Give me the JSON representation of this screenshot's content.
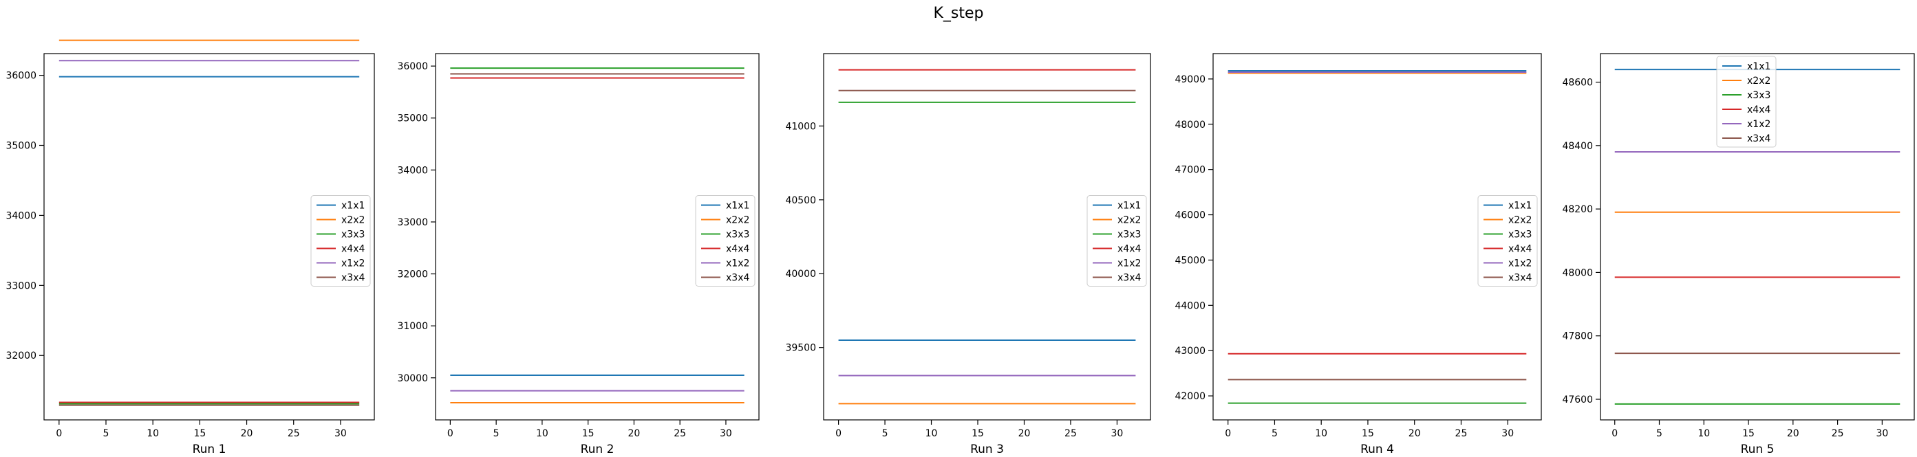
{
  "figure": {
    "title": "K_step"
  },
  "chart_data": [
    {
      "type": "line",
      "title": "",
      "xlabel": "Run 1",
      "ylabel": "",
      "xlim": [
        -1.6,
        33.6
      ],
      "ylim": [
        31080,
        36310
      ],
      "xticks": [
        0,
        5,
        10,
        15,
        20,
        25,
        30
      ],
      "yticks": [
        32000,
        33000,
        34000,
        35000,
        36000
      ],
      "x": [
        0,
        32
      ],
      "legend_position": "center right",
      "series": [
        {
          "name": "x1x1",
          "color": "#1f77b4",
          "values": [
            35980,
            35980
          ]
        },
        {
          "name": "x2x2",
          "color": "#ff7f0e",
          "values": [
            36500,
            36500
          ]
        },
        {
          "name": "x3x3",
          "color": "#2ca02c",
          "values": [
            31310,
            31310
          ]
        },
        {
          "name": "x4x4",
          "color": "#d62728",
          "values": [
            31330,
            31330
          ]
        },
        {
          "name": "x1x2",
          "color": "#9467bd",
          "values": [
            36210,
            36210
          ]
        },
        {
          "name": "x3x4",
          "color": "#8c564b",
          "values": [
            31290,
            31290
          ]
        }
      ]
    },
    {
      "type": "line",
      "title": "",
      "xlabel": "Run 2",
      "ylabel": "",
      "xlim": [
        -1.6,
        33.6
      ],
      "ylim": [
        29190,
        36240
      ],
      "xticks": [
        0,
        5,
        10,
        15,
        20,
        25,
        30
      ],
      "yticks": [
        30000,
        31000,
        32000,
        33000,
        34000,
        35000,
        36000
      ],
      "x": [
        0,
        32
      ],
      "legend_position": "center right",
      "series": [
        {
          "name": "x1x1",
          "color": "#1f77b4",
          "values": [
            30050,
            30050
          ]
        },
        {
          "name": "x2x2",
          "color": "#ff7f0e",
          "values": [
            29520,
            29520
          ]
        },
        {
          "name": "x3x3",
          "color": "#2ca02c",
          "values": [
            35960,
            35960
          ]
        },
        {
          "name": "x4x4",
          "color": "#d62728",
          "values": [
            35770,
            35770
          ]
        },
        {
          "name": "x1x2",
          "color": "#9467bd",
          "values": [
            29750,
            29750
          ]
        },
        {
          "name": "x3x4",
          "color": "#8c564b",
          "values": [
            35850,
            35850
          ]
        }
      ]
    },
    {
      "type": "line",
      "title": "",
      "xlabel": "Run 3",
      "ylabel": "",
      "xlim": [
        -1.6,
        33.6
      ],
      "ylim": [
        39010,
        41490
      ],
      "xticks": [
        0,
        5,
        10,
        15,
        20,
        25,
        30
      ],
      "yticks": [
        39500,
        40000,
        40500,
        41000
      ],
      "x": [
        0,
        32
      ],
      "legend_position": "center right",
      "series": [
        {
          "name": "x1x1",
          "color": "#1f77b4",
          "values": [
            39550,
            39550
          ]
        },
        {
          "name": "x2x2",
          "color": "#ff7f0e",
          "values": [
            39120,
            39120
          ]
        },
        {
          "name": "x3x3",
          "color": "#2ca02c",
          "values": [
            41160,
            41160
          ]
        },
        {
          "name": "x4x4",
          "color": "#d62728",
          "values": [
            41380,
            41380
          ]
        },
        {
          "name": "x1x2",
          "color": "#9467bd",
          "values": [
            39310,
            39310
          ]
        },
        {
          "name": "x3x4",
          "color": "#8c564b",
          "values": [
            41240,
            41240
          ]
        }
      ]
    },
    {
      "type": "line",
      "title": "",
      "xlabel": "Run 4",
      "ylabel": "",
      "xlim": [
        -1.6,
        33.6
      ],
      "ylim": [
        41470,
        49560
      ],
      "xticks": [
        0,
        5,
        10,
        15,
        20,
        25,
        30
      ],
      "yticks": [
        42000,
        43000,
        44000,
        45000,
        46000,
        47000,
        48000,
        49000
      ],
      "x": [
        0,
        32
      ],
      "legend_position": "center right",
      "series": [
        {
          "name": "x1x1",
          "color": "#1f77b4",
          "values": [
            49180,
            49180
          ]
        },
        {
          "name": "x2x2",
          "color": "#ff7f0e",
          "values": [
            49130,
            49130
          ]
        },
        {
          "name": "x3x3",
          "color": "#2ca02c",
          "values": [
            41840,
            41840
          ]
        },
        {
          "name": "x4x4",
          "color": "#d62728",
          "values": [
            42930,
            42930
          ]
        },
        {
          "name": "x1x2",
          "color": "#9467bd",
          "values": [
            49150,
            49150
          ]
        },
        {
          "name": "x3x4",
          "color": "#8c564b",
          "values": [
            42360,
            42360
          ]
        }
      ]
    },
    {
      "type": "line",
      "title": "",
      "xlabel": "Run 5",
      "ylabel": "",
      "xlim": [
        -1.6,
        33.6
      ],
      "ylim": [
        47535,
        48690
      ],
      "xticks": [
        0,
        5,
        10,
        15,
        20,
        25,
        30
      ],
      "yticks": [
        47600,
        47800,
        48000,
        48200,
        48400,
        48600
      ],
      "x": [
        0,
        32
      ],
      "legend_position": "upper center",
      "series": [
        {
          "name": "x1x1",
          "color": "#1f77b4",
          "values": [
            48640,
            48640
          ]
        },
        {
          "name": "x2x2",
          "color": "#ff7f0e",
          "values": [
            48190,
            48190
          ]
        },
        {
          "name": "x3x3",
          "color": "#2ca02c",
          "values": [
            47585,
            47585
          ]
        },
        {
          "name": "x4x4",
          "color": "#d62728",
          "values": [
            47985,
            47985
          ]
        },
        {
          "name": "x1x2",
          "color": "#9467bd",
          "values": [
            48380,
            48380
          ]
        },
        {
          "name": "x3x4",
          "color": "#8c564b",
          "values": [
            47745,
            47745
          ]
        }
      ]
    }
  ]
}
